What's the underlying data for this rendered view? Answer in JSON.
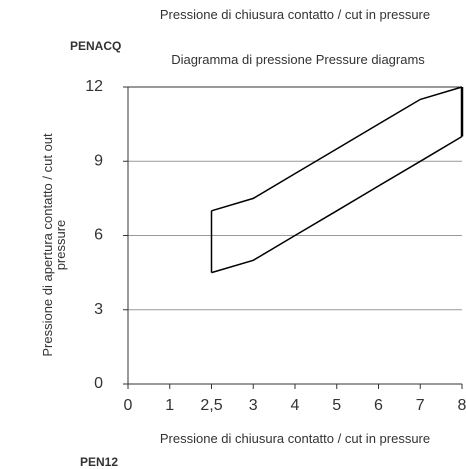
{
  "chart_data": {
    "type": "line",
    "title": "Pressione di chiusura contatto / cut in pressure",
    "subtitle": "Diagramma di pressione  Pressure diagrams",
    "annotations": [
      "PENACQ",
      "PEN12"
    ],
    "x_label": "Pressione di chiusura contatto / cut in pressure",
    "y_label": "Pressione di apertura contatto / cut out pressure",
    "categories": [
      "0",
      "1",
      "2,5",
      "3",
      "4",
      "5",
      "6",
      "7",
      "8"
    ],
    "series": [
      {
        "name": "upper",
        "color": "#000000",
        "values": [
          null,
          null,
          7,
          7.5,
          8.5,
          9.5,
          10.5,
          11.5,
          12
        ]
      },
      {
        "name": "lower",
        "color": "#000000",
        "values": [
          null,
          null,
          4.5,
          5,
          6,
          7,
          8,
          9,
          10
        ]
      }
    ],
    "ylim": [
      0,
      12
    ],
    "yticks": [
      0,
      3,
      6,
      9,
      12
    ],
    "grid": true
  }
}
